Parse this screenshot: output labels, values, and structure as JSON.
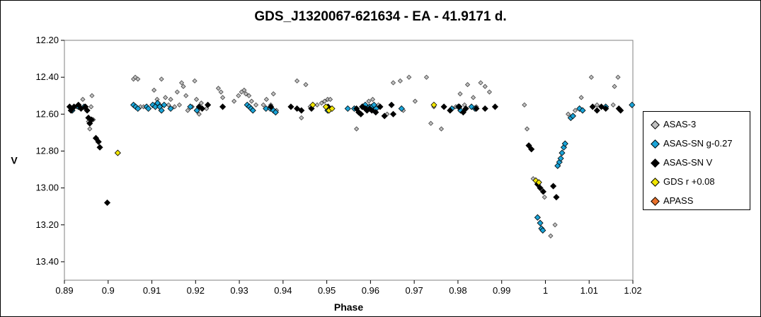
{
  "chart_data": {
    "type": "scatter",
    "title": "GDS_J1320067-621634  - EA - 41.9171 d.",
    "xlabel": "Phase",
    "ylabel": "V",
    "xlim": [
      0.89,
      1.02
    ],
    "ylim": [
      12.2,
      13.5
    ],
    "y_inverted": true,
    "xticks": [
      "0.89",
      "0.9",
      "0.91",
      "0.92",
      "0.93",
      "0.94",
      "0.95",
      "0.96",
      "0.97",
      "0.98",
      "0.99",
      "1",
      "1.01",
      "1.02"
    ],
    "yticks": [
      "12.20",
      "12.40",
      "12.60",
      "12.80",
      "13.00",
      "13.20",
      "13.40"
    ],
    "grid": false,
    "legend_position": "right",
    "series": [
      {
        "name": "ASAS-3",
        "color": "#c0c0c0",
        "points": [
          [
            0.8915,
            12.57
          ],
          [
            0.8928,
            12.56
          ],
          [
            0.8942,
            12.52
          ],
          [
            0.8948,
            12.56
          ],
          [
            0.8952,
            12.58
          ],
          [
            0.8955,
            12.64
          ],
          [
            0.8958,
            12.68
          ],
          [
            0.8961,
            12.56
          ],
          [
            0.8963,
            12.5
          ],
          [
            0.8966,
            12.63
          ],
          [
            0.9058,
            12.41
          ],
          [
            0.9062,
            12.4
          ],
          [
            0.9068,
            12.41
          ],
          [
            0.9074,
            12.56
          ],
          [
            0.9081,
            12.56
          ],
          [
            0.9093,
            12.57
          ],
          [
            0.9105,
            12.47
          ],
          [
            0.9112,
            12.52
          ],
          [
            0.9118,
            12.55
          ],
          [
            0.9122,
            12.41
          ],
          [
            0.9131,
            12.51
          ],
          [
            0.9138,
            12.55
          ],
          [
            0.9143,
            12.52
          ],
          [
            0.9152,
            12.56
          ],
          [
            0.9158,
            12.48
          ],
          [
            0.9163,
            12.55
          ],
          [
            0.9168,
            12.43
          ],
          [
            0.9172,
            12.45
          ],
          [
            0.9178,
            12.5
          ],
          [
            0.9182,
            12.58
          ],
          [
            0.9192,
            12.56
          ],
          [
            0.9198,
            12.42
          ],
          [
            0.9202,
            12.52
          ],
          [
            0.9208,
            12.6
          ],
          [
            0.9213,
            12.54
          ],
          [
            0.9225,
            12.57
          ],
          [
            0.9252,
            12.46
          ],
          [
            0.9258,
            12.48
          ],
          [
            0.9262,
            12.51
          ],
          [
            0.9288,
            12.53
          ],
          [
            0.9298,
            12.5
          ],
          [
            0.9305,
            12.48
          ],
          [
            0.9311,
            12.47
          ],
          [
            0.9315,
            12.49
          ],
          [
            0.9322,
            12.5
          ],
          [
            0.9328,
            12.53
          ],
          [
            0.9338,
            12.55
          ],
          [
            0.9355,
            12.55
          ],
          [
            0.9362,
            12.52
          ],
          [
            0.9372,
            12.55
          ],
          [
            0.9378,
            12.49
          ],
          [
            0.9385,
            12.58
          ],
          [
            0.9432,
            12.42
          ],
          [
            0.9442,
            12.62
          ],
          [
            0.9452,
            12.44
          ],
          [
            0.9462,
            12.56
          ],
          [
            0.9478,
            12.55
          ],
          [
            0.9488,
            12.54
          ],
          [
            0.9495,
            12.53
          ],
          [
            0.9502,
            12.52
          ],
          [
            0.9508,
            12.52
          ],
          [
            0.9568,
            12.68
          ],
          [
            0.9582,
            12.56
          ],
          [
            0.9596,
            12.53
          ],
          [
            0.9605,
            12.52
          ],
          [
            0.9618,
            12.55
          ],
          [
            0.9638,
            12.6
          ],
          [
            0.9652,
            12.43
          ],
          [
            0.9668,
            12.42
          ],
          [
            0.9675,
            12.58
          ],
          [
            0.9688,
            12.4
          ],
          [
            0.9702,
            12.53
          ],
          [
            0.9728,
            12.4
          ],
          [
            0.9738,
            12.65
          ],
          [
            0.9745,
            12.56
          ],
          [
            0.9762,
            12.68
          ],
          [
            0.9782,
            12.58
          ],
          [
            0.9795,
            12.56
          ],
          [
            0.9805,
            12.49
          ],
          [
            0.9815,
            12.55
          ],
          [
            0.9822,
            12.44
          ],
          [
            0.9835,
            12.51
          ],
          [
            0.9842,
            12.56
          ],
          [
            0.9852,
            12.43
          ],
          [
            0.9862,
            12.45
          ],
          [
            0.9872,
            12.48
          ],
          [
            0.9952,
            12.55
          ],
          [
            0.9958,
            12.68
          ],
          [
            0.9972,
            12.95
          ],
          [
            0.9998,
            13.05
          ],
          [
            1.0012,
            13.26
          ],
          [
            1.0022,
            13.2
          ],
          [
            1.0052,
            12.6
          ],
          [
            1.0068,
            12.58
          ],
          [
            1.0082,
            12.51
          ],
          [
            1.0105,
            12.4
          ],
          [
            1.0118,
            12.55
          ],
          [
            1.0155,
            12.55
          ],
          [
            1.0158,
            12.45
          ],
          [
            1.0166,
            12.4
          ]
        ]
      },
      {
        "name": "ASAS-SN g-0.27",
        "color": "#1aa4d8",
        "points": [
          [
            0.8918,
            12.58
          ],
          [
            0.8932,
            12.56
          ],
          [
            0.8945,
            12.56
          ],
          [
            0.9058,
            12.55
          ],
          [
            0.9063,
            12.56
          ],
          [
            0.9068,
            12.57
          ],
          [
            0.9088,
            12.56
          ],
          [
            0.9092,
            12.57
          ],
          [
            0.9102,
            12.55
          ],
          [
            0.9108,
            12.56
          ],
          [
            0.9113,
            12.54
          ],
          [
            0.9118,
            12.56
          ],
          [
            0.9122,
            12.58
          ],
          [
            0.9128,
            12.55
          ],
          [
            0.9143,
            12.57
          ],
          [
            0.9188,
            12.56
          ],
          [
            0.9203,
            12.58
          ],
          [
            0.9318,
            12.55
          ],
          [
            0.9323,
            12.56
          ],
          [
            0.9327,
            12.57
          ],
          [
            0.9331,
            12.58
          ],
          [
            0.9361,
            12.57
          ],
          [
            0.9371,
            12.57
          ],
          [
            0.9378,
            12.58
          ],
          [
            0.9383,
            12.59
          ],
          [
            0.9502,
            12.58
          ],
          [
            0.9548,
            12.57
          ],
          [
            0.9563,
            12.57
          ],
          [
            0.9581,
            12.56
          ],
          [
            0.9588,
            12.55
          ],
          [
            0.9593,
            12.57
          ],
          [
            0.9598,
            12.56
          ],
          [
            0.9603,
            12.56
          ],
          [
            0.9608,
            12.55
          ],
          [
            0.9613,
            12.57
          ],
          [
            0.9671,
            12.57
          ],
          [
            0.9786,
            12.57
          ],
          [
            0.9801,
            12.56
          ],
          [
            0.9806,
            12.58
          ],
          [
            0.9831,
            12.56
          ],
          [
            0.9839,
            12.57
          ],
          [
            0.9982,
            13.16
          ],
          [
            0.9988,
            13.19
          ],
          [
            0.9991,
            13.22
          ],
          [
            0.9994,
            13.23
          ],
          [
            1.0028,
            12.88
          ],
          [
            1.0032,
            12.86
          ],
          [
            1.0035,
            12.84
          ],
          [
            1.0038,
            12.81
          ],
          [
            1.0042,
            12.78
          ],
          [
            1.0045,
            12.76
          ],
          [
            1.0058,
            12.62
          ],
          [
            1.0063,
            12.61
          ],
          [
            1.0078,
            12.57
          ],
          [
            1.0085,
            12.58
          ],
          [
            1.0138,
            12.56
          ],
          [
            1.0198,
            12.55
          ]
        ]
      },
      {
        "name": "ASAS-SN V",
        "color": "#000000",
        "points": [
          [
            0.8912,
            12.56
          ],
          [
            0.8915,
            12.58
          ],
          [
            0.8918,
            12.57
          ],
          [
            0.8922,
            12.56
          ],
          [
            0.8932,
            12.55
          ],
          [
            0.8938,
            12.57
          ],
          [
            0.8948,
            12.56
          ],
          [
            0.8952,
            12.58
          ],
          [
            0.8955,
            12.62
          ],
          [
            0.8958,
            12.65
          ],
          [
            0.8962,
            12.63
          ],
          [
            0.8972,
            12.73
          ],
          [
            0.8978,
            12.75
          ],
          [
            0.8981,
            12.78
          ],
          [
            0.8998,
            13.08
          ],
          [
            0.9208,
            12.56
          ],
          [
            0.9215,
            12.57
          ],
          [
            0.9228,
            12.55
          ],
          [
            0.9262,
            12.56
          ],
          [
            0.9372,
            12.56
          ],
          [
            0.9418,
            12.56
          ],
          [
            0.9432,
            12.57
          ],
          [
            0.9442,
            12.58
          ],
          [
            0.9465,
            12.57
          ],
          [
            0.9503,
            12.56
          ],
          [
            0.9568,
            12.57
          ],
          [
            0.9573,
            12.59
          ],
          [
            0.9578,
            12.6
          ],
          [
            0.9582,
            12.56
          ],
          [
            0.9588,
            12.57
          ],
          [
            0.9592,
            12.58
          ],
          [
            0.9598,
            12.57
          ],
          [
            0.9603,
            12.58
          ],
          [
            0.9612,
            12.59
          ],
          [
            0.9622,
            12.56
          ],
          [
            0.9632,
            12.61
          ],
          [
            0.9648,
            12.55
          ],
          [
            0.9652,
            12.6
          ],
          [
            0.9768,
            12.56
          ],
          [
            0.9782,
            12.58
          ],
          [
            0.9803,
            12.56
          ],
          [
            0.9812,
            12.59
          ],
          [
            0.9818,
            12.57
          ],
          [
            0.9842,
            12.57
          ],
          [
            0.9862,
            12.57
          ],
          [
            0.9885,
            12.56
          ],
          [
            0.9962,
            12.77
          ],
          [
            0.9968,
            12.79
          ],
          [
            0.9982,
            12.98
          ],
          [
            0.9988,
            13.0
          ],
          [
            0.9995,
            13.02
          ],
          [
            1.0018,
            12.99
          ],
          [
            1.0025,
            13.05
          ],
          [
            1.0108,
            12.56
          ],
          [
            1.0118,
            12.58
          ],
          [
            1.0128,
            12.56
          ],
          [
            1.0138,
            12.57
          ],
          [
            1.0168,
            12.57
          ],
          [
            1.0172,
            12.58
          ]
        ]
      },
      {
        "name": "GDS r +0.08",
        "color": "#f2e600",
        "points": [
          [
            0.9022,
            12.81
          ],
          [
            0.9468,
            12.55
          ],
          [
            0.9498,
            12.56
          ],
          [
            0.9505,
            12.58
          ],
          [
            0.9512,
            12.57
          ],
          [
            0.9745,
            12.55
          ],
          [
            0.9978,
            12.96
          ],
          [
            0.9985,
            12.97
          ]
        ]
      },
      {
        "name": "APASS",
        "color": "#e8702a",
        "points": []
      }
    ]
  }
}
